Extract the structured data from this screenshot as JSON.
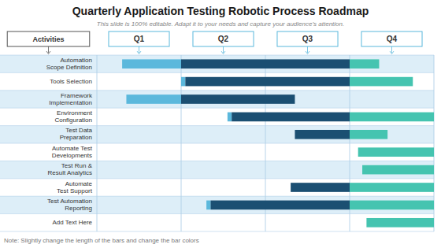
{
  "chart_data": {
    "type": "gantt",
    "title": "Quarterly Application Testing Robotic Process Roadmap",
    "subtitle": "This slide is 100% editable. Adapt it to your needs and capture your audience’s attention.",
    "note": "Note: Slightly change the length of the bars and change the bar colors",
    "ylabel": "Activities",
    "quarters": [
      "Q1",
      "Q2",
      "Q3",
      "Q4"
    ],
    "categories": [
      "Automation\nScope Definition",
      "Tools Selection",
      "Framework\nImplementation",
      "Environment\nConfiguration",
      "Test Data\nPreparation",
      "Automate Test\nDevelopments",
      "Test Run &\nResult Analytics",
      "Automate\nTest Support",
      "Test Automation\nReporting",
      "Add Text Here"
    ],
    "values": [
      [
        {
          "start": 0.3,
          "end": 1.0,
          "color": "#5bb8dc"
        },
        {
          "start": 1.0,
          "end": 3.0,
          "color": "#1b4f72"
        },
        {
          "start": 3.0,
          "end": 3.35,
          "color": "#45c4b0"
        }
      ],
      [
        {
          "start": 1.0,
          "end": 1.05,
          "color": "#5bb8dc"
        },
        {
          "start": 1.05,
          "end": 3.0,
          "color": "#1b4f72"
        },
        {
          "start": 3.0,
          "end": 3.75,
          "color": "#45c4b0"
        }
      ],
      [
        {
          "start": 0.35,
          "end": 1.0,
          "color": "#5bb8dc"
        },
        {
          "start": 1.0,
          "end": 2.35,
          "color": "#1b4f72"
        }
      ],
      [
        {
          "start": 1.55,
          "end": 1.6,
          "color": "#5bb8dc"
        },
        {
          "start": 1.6,
          "end": 3.0,
          "color": "#1b4f72"
        },
        {
          "start": 3.0,
          "end": 4.0,
          "color": "#45c4b0"
        }
      ],
      [
        {
          "start": 2.35,
          "end": 3.0,
          "color": "#1b4f72"
        },
        {
          "start": 3.0,
          "end": 3.45,
          "color": "#45c4b0"
        }
      ],
      [
        {
          "start": 3.1,
          "end": 4.0,
          "color": "#45c4b0"
        }
      ],
      [
        {
          "start": 3.15,
          "end": 4.0,
          "color": "#45c4b0"
        }
      ],
      [
        {
          "start": 2.3,
          "end": 3.0,
          "color": "#1b4f72"
        },
        {
          "start": 3.0,
          "end": 4.0,
          "color": "#45c4b0"
        }
      ],
      [
        {
          "start": 1.3,
          "end": 1.35,
          "color": "#5bb8dc"
        },
        {
          "start": 1.35,
          "end": 3.0,
          "color": "#1b4f72"
        },
        {
          "start": 3.0,
          "end": 4.0,
          "color": "#45c4b0"
        }
      ],
      [
        {
          "start": 3.2,
          "end": 4.0,
          "color": "#45c4b0"
        }
      ]
    ],
    "xlim": [
      0,
      4
    ],
    "xticks": [
      0,
      1,
      2,
      3,
      4
    ],
    "grid": true,
    "tick_labels": "y"
  }
}
